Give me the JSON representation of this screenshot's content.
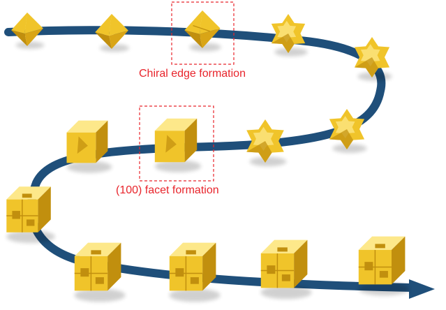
{
  "annotations": {
    "chiral_edge": "Chiral edge formation",
    "facet": "(100) facet formation"
  },
  "colors": {
    "path": "#1f4f7a",
    "particle": "#f0c42a",
    "particle_shadow": "#c18f0e",
    "particle_light": "#fde88a",
    "highlight_box": "#e8242b"
  },
  "stages": [
    {
      "shape": "octahedron"
    },
    {
      "shape": "octahedron"
    },
    {
      "shape": "octahedron-chiral-edge",
      "highlighted": true
    },
    {
      "shape": "spiky-octahedron"
    },
    {
      "shape": "spiky-octahedron"
    },
    {
      "shape": "spiky-octahedron"
    },
    {
      "shape": "spiky-octahedron"
    },
    {
      "shape": "cube-facet",
      "highlighted": true
    },
    {
      "shape": "cube-facet"
    },
    {
      "shape": "chiral-cube"
    },
    {
      "shape": "chiral-cube"
    },
    {
      "shape": "chiral-cube"
    },
    {
      "shape": "chiral-cube"
    },
    {
      "shape": "chiral-cube"
    }
  ]
}
